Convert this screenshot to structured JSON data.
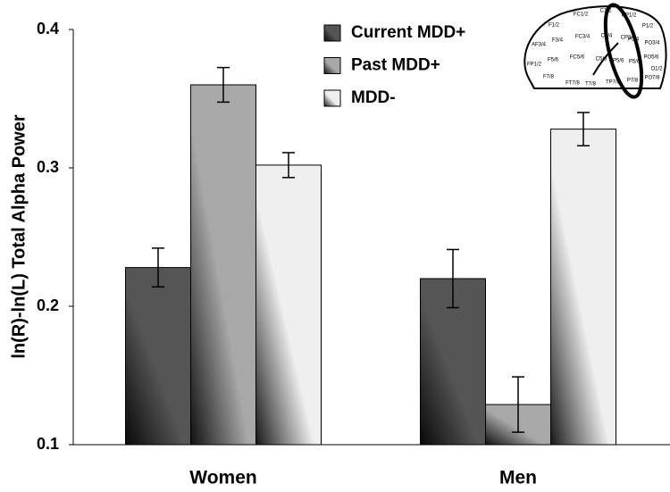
{
  "chart_data": {
    "type": "bar",
    "ylabel": "ln(R)-ln(L) Total Alpha Power",
    "categories": [
      "Women",
      "Men"
    ],
    "series": [
      {
        "name": "Current MDD+",
        "color": "#555555",
        "values": [
          0.228,
          0.22
        ],
        "errors": [
          0.014,
          0.021
        ]
      },
      {
        "name": "Past MDD+",
        "color": "#a8a8a8",
        "values": [
          0.36,
          0.129
        ],
        "errors": [
          0.0125,
          0.02
        ]
      },
      {
        "name": "MDD-",
        "color": "#efefef",
        "values": [
          0.302,
          0.328
        ],
        "errors": [
          0.009,
          0.012
        ]
      }
    ],
    "ylim": [
      0.1,
      0.4
    ],
    "yticks": [
      0.1,
      0.2,
      0.3,
      0.4
    ],
    "grid": false,
    "legend": "top",
    "inset_labels": [
      "F1/2",
      "FC1/2",
      "C1/2",
      "CP1/2",
      "P1/2",
      "AF3/4",
      "F3/4",
      "FC3/4",
      "C3/4",
      "CP3/4",
      "P3/4",
      "PO3/4",
      "FP1/2",
      "F5/6",
      "FC5/6",
      "C5/6",
      "CP5/6",
      "P5/6",
      "PO5/6",
      "O1/2",
      "F7/8",
      "FT7/8",
      "T7/8",
      "TP7/8",
      "P7/8",
      "PO7/8"
    ]
  }
}
